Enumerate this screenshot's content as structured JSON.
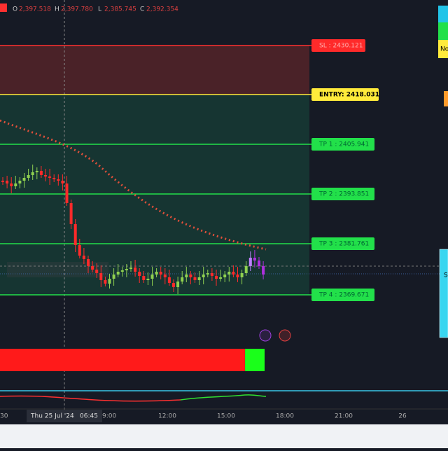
{
  "header": {
    "ohlc": [
      {
        "key": "O",
        "value": "2,397.518"
      },
      {
        "key": "H",
        "value": "2,397.780"
      },
      {
        "key": "L",
        "value": "2,385.745"
      },
      {
        "key": "C",
        "value": "2,392.354"
      }
    ]
  },
  "levels": [
    {
      "label": "SL : 2430.121"
    },
    {
      "label": "ENTRY: 2418.031"
    },
    {
      "label": "TP 1 : 2405.941"
    },
    {
      "label": "TP 2 : 2393.851"
    },
    {
      "label": "TP 3 : 2381.761"
    },
    {
      "label": "TP 4 : 2369.671"
    }
  ],
  "side_panel": {
    "top_text": "No",
    "lower_text": "S"
  },
  "time_axis": [
    "30",
    "9:00",
    "12:00",
    "15:00",
    "18:00",
    "21:00",
    "26"
  ],
  "crosshair_label": {
    "date": "Thu 25 Jul '24",
    "time": "06:45"
  }
}
